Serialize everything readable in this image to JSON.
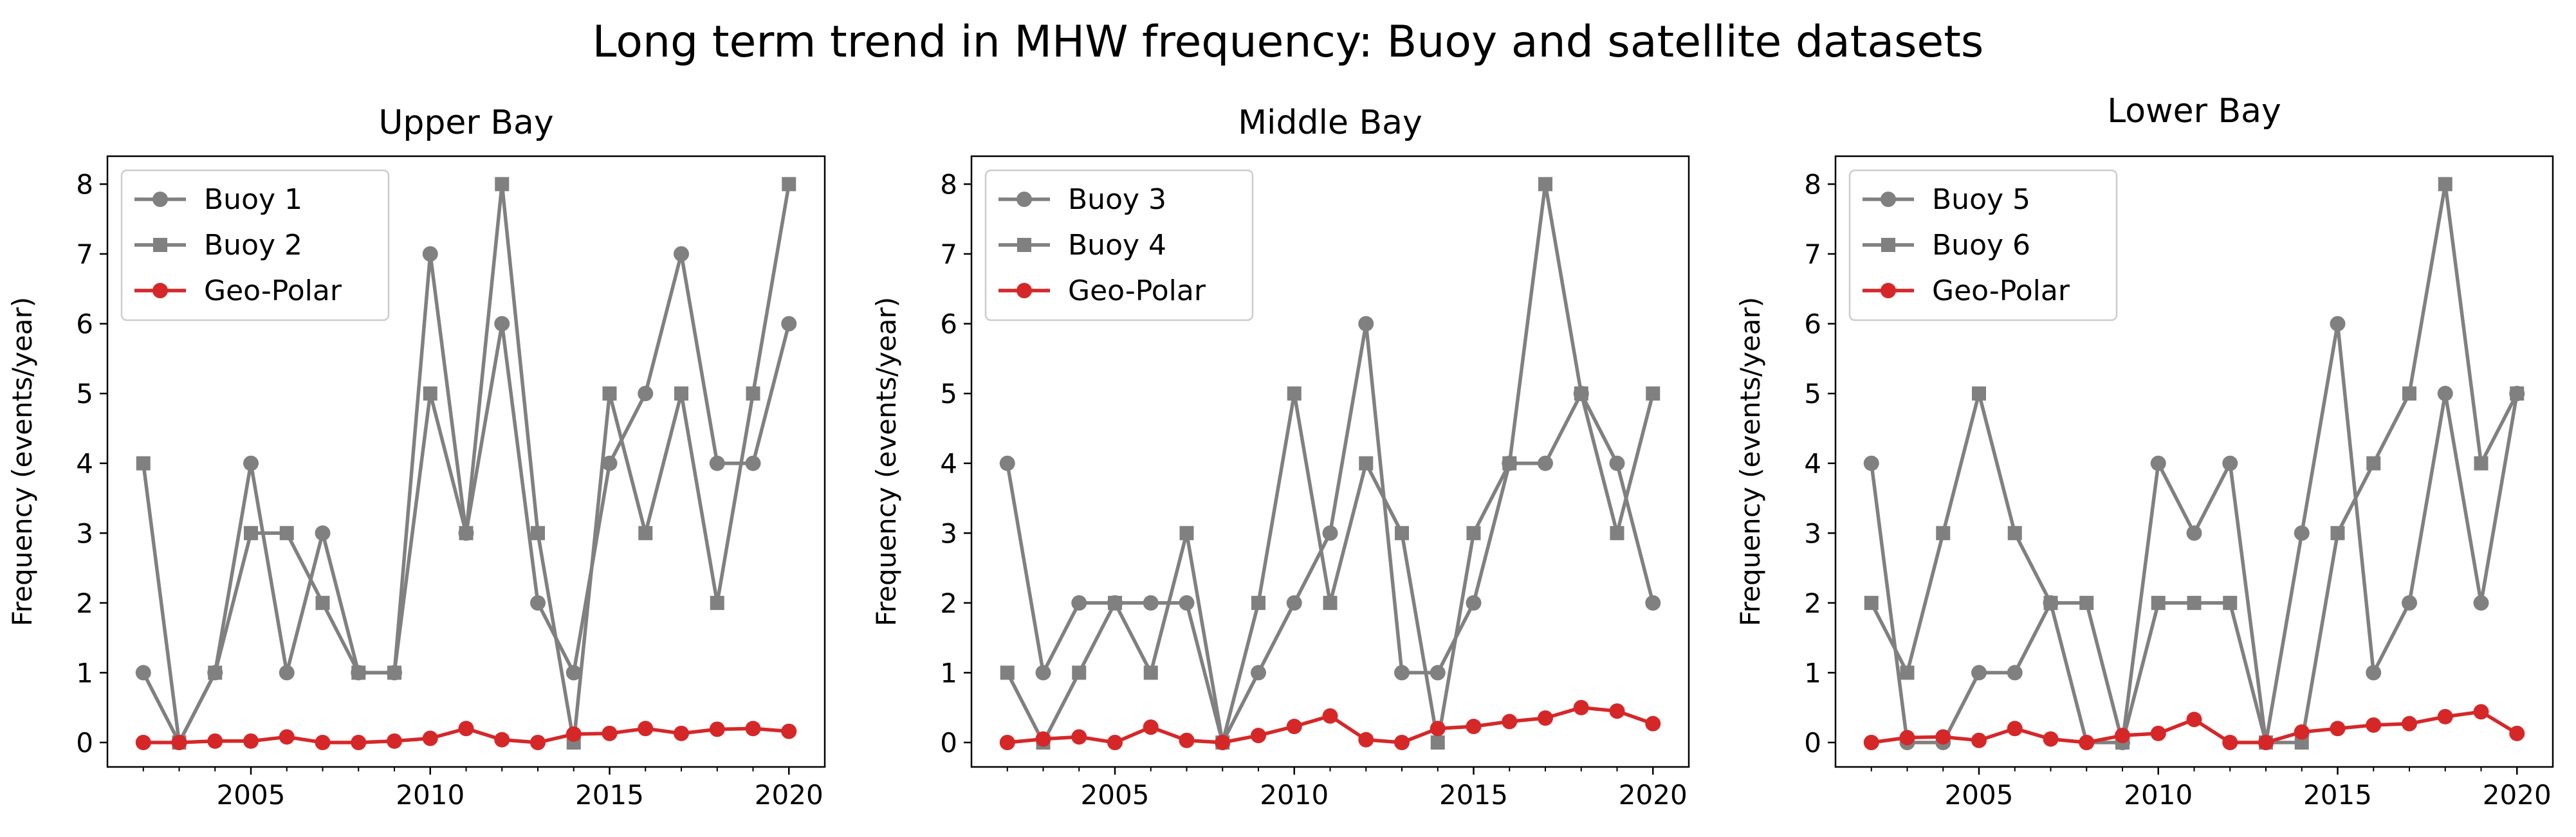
{
  "figure": {
    "suptitle": "Long term trend in MHW frequency: Buoy and satellite datasets"
  },
  "chart_data": [
    {
      "type": "line",
      "title": "Upper Bay",
      "xlabel": "",
      "ylabel": "Frequency (events/year)",
      "xlim": [
        2001,
        2021
      ],
      "ylim": [
        -0.35,
        8.4
      ],
      "xticks": [
        2005,
        2010,
        2015,
        2020
      ],
      "xticks_minor": [
        2002,
        2003,
        2004,
        2005,
        2006,
        2007,
        2008,
        2009,
        2010,
        2011,
        2012,
        2013,
        2014,
        2015,
        2016,
        2017,
        2018,
        2019,
        2020
      ],
      "yticks": [
        0,
        1,
        2,
        3,
        4,
        5,
        6,
        7,
        8
      ],
      "grid": false,
      "legend_position": "top-left",
      "x": [
        2002,
        2003,
        2004,
        2005,
        2006,
        2007,
        2008,
        2009,
        2010,
        2011,
        2012,
        2013,
        2014,
        2015,
        2016,
        2017,
        2018,
        2019,
        2020
      ],
      "series": [
        {
          "name": "Buoy 1",
          "color": "#808080",
          "marker": "circle",
          "values": [
            1,
            0,
            1,
            4,
            1,
            3,
            1,
            1,
            7,
            3,
            6,
            2,
            1,
            4,
            5,
            7,
            4,
            4,
            6
          ]
        },
        {
          "name": "Buoy 2",
          "color": "#808080",
          "marker": "square",
          "values": [
            4,
            0,
            1,
            3,
            3,
            2,
            1,
            1,
            5,
            3,
            8,
            3,
            0,
            5,
            3,
            5,
            2,
            5,
            8
          ]
        },
        {
          "name": "Geo-Polar",
          "color": "#d62728",
          "marker": "circle",
          "values": [
            0,
            0,
            0.02,
            0.02,
            0.08,
            0,
            0,
            0.02,
            0.06,
            0.2,
            0.04,
            0,
            0.12,
            0.13,
            0.2,
            0.13,
            0.19,
            0.2,
            0.16
          ]
        }
      ]
    },
    {
      "type": "line",
      "title": "Middle Bay",
      "xlabel": "",
      "ylabel": "Frequency (events/year)",
      "xlim": [
        2001,
        2021
      ],
      "ylim": [
        -0.35,
        8.4
      ],
      "xticks": [
        2005,
        2010,
        2015,
        2020
      ],
      "xticks_minor": [
        2002,
        2003,
        2004,
        2005,
        2006,
        2007,
        2008,
        2009,
        2010,
        2011,
        2012,
        2013,
        2014,
        2015,
        2016,
        2017,
        2018,
        2019,
        2020
      ],
      "yticks": [
        0,
        1,
        2,
        3,
        4,
        5,
        6,
        7,
        8
      ],
      "grid": false,
      "legend_position": "top-left",
      "x": [
        2002,
        2003,
        2004,
        2005,
        2006,
        2007,
        2008,
        2009,
        2010,
        2011,
        2012,
        2013,
        2014,
        2015,
        2016,
        2017,
        2018,
        2019,
        2020
      ],
      "series": [
        {
          "name": "Buoy 3",
          "color": "#808080",
          "marker": "circle",
          "values": [
            4,
            1,
            2,
            2,
            2,
            2,
            0,
            1,
            2,
            3,
            6,
            1,
            1,
            2,
            4,
            4,
            5,
            4,
            2
          ]
        },
        {
          "name": "Buoy 4",
          "color": "#808080",
          "marker": "square",
          "values": [
            1,
            0,
            1,
            2,
            1,
            3,
            0,
            2,
            5,
            2,
            4,
            3,
            0,
            3,
            4,
            8,
            5,
            3,
            5
          ]
        },
        {
          "name": "Geo-Polar",
          "color": "#d62728",
          "marker": "circle",
          "values": [
            0,
            0.05,
            0.08,
            0,
            0.22,
            0.03,
            0,
            0.1,
            0.23,
            0.38,
            0.04,
            0,
            0.2,
            0.23,
            0.3,
            0.35,
            0.5,
            0.45,
            0.27
          ]
        }
      ]
    },
    {
      "type": "line",
      "title": "Lower Bay",
      "xlabel": "",
      "ylabel": "Frequency (events/year)",
      "xlim": [
        2001,
        2021
      ],
      "ylim": [
        -0.35,
        8.4
      ],
      "xticks": [
        2005,
        2010,
        2015,
        2020
      ],
      "xticks_minor": [
        2002,
        2003,
        2004,
        2005,
        2006,
        2007,
        2008,
        2009,
        2010,
        2011,
        2012,
        2013,
        2014,
        2015,
        2016,
        2017,
        2018,
        2019,
        2020
      ],
      "yticks": [
        0,
        1,
        2,
        3,
        4,
        5,
        6,
        7,
        8
      ],
      "grid": false,
      "legend_position": "top-left",
      "x": [
        2002,
        2003,
        2004,
        2005,
        2006,
        2007,
        2008,
        2009,
        2010,
        2011,
        2012,
        2013,
        2014,
        2015,
        2016,
        2017,
        2018,
        2019,
        2020
      ],
      "series": [
        {
          "name": "Buoy 5",
          "color": "#808080",
          "marker": "circle",
          "values": [
            4,
            0,
            0,
            1,
            1,
            2,
            0,
            0,
            4,
            3,
            4,
            0,
            3,
            6,
            1,
            2,
            5,
            2,
            5
          ]
        },
        {
          "name": "Buoy 6",
          "color": "#808080",
          "marker": "square",
          "values": [
            2,
            1,
            3,
            5,
            3,
            2,
            2,
            0,
            2,
            2,
            2,
            0,
            0,
            3,
            4,
            5,
            8,
            4,
            5
          ]
        },
        {
          "name": "Geo-Polar",
          "color": "#d62728",
          "marker": "circle",
          "values": [
            0,
            0.07,
            0.08,
            0.03,
            0.2,
            0.05,
            0,
            0.1,
            0.13,
            0.33,
            0,
            0,
            0.15,
            0.2,
            0.25,
            0.27,
            0.37,
            0.44,
            0.13
          ]
        }
      ]
    }
  ]
}
